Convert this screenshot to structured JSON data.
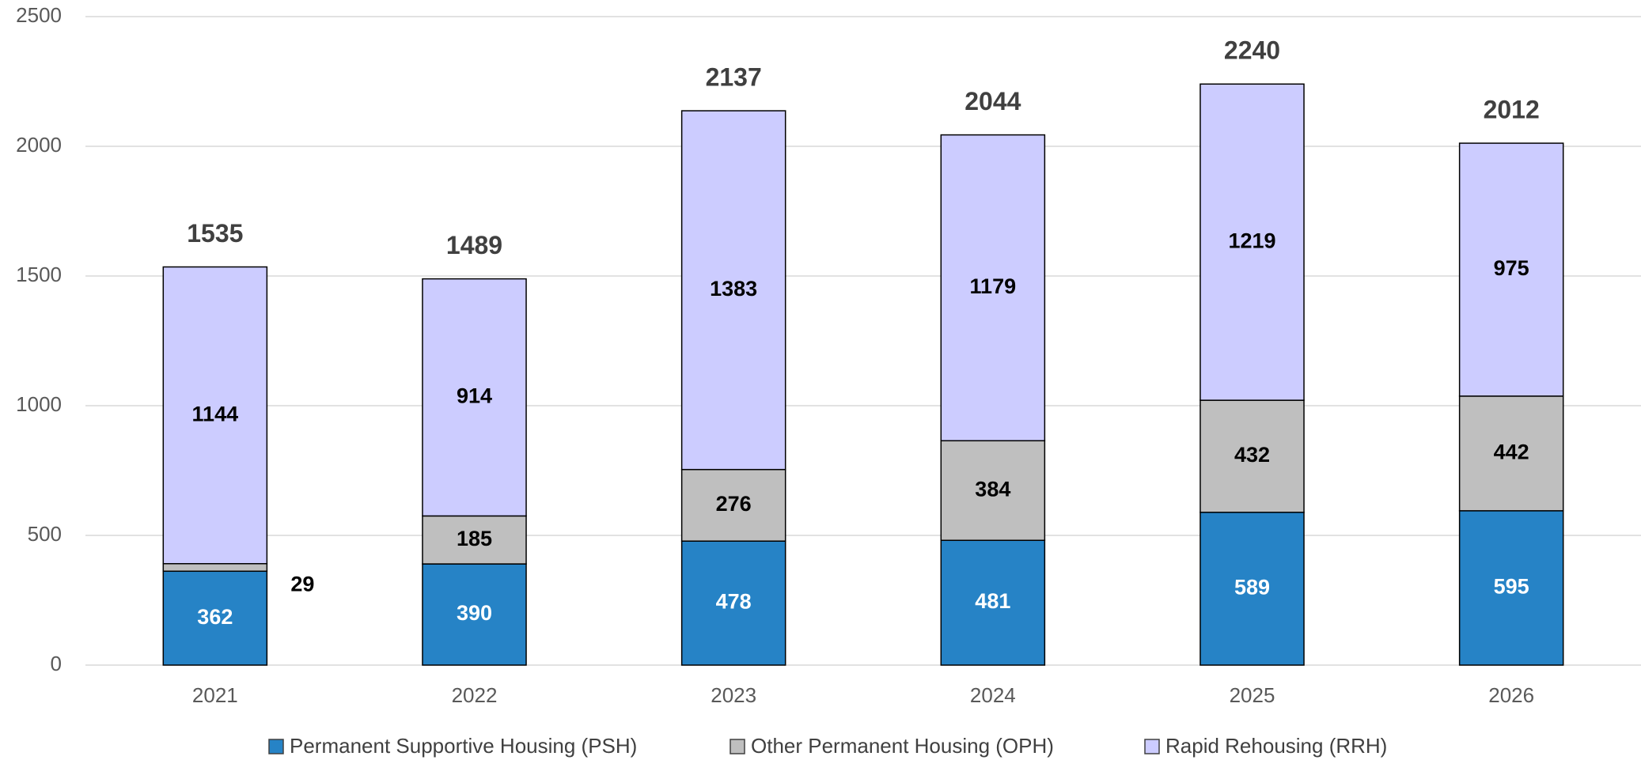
{
  "chart_data": {
    "type": "stacked_bar",
    "categories": [
      "2021",
      "2022",
      "2023",
      "2024",
      "2025",
      "2026"
    ],
    "series": [
      {
        "name": "Permanent Supportive Housing (PSH)",
        "color": "#2683c6",
        "values": [
          362,
          390,
          478,
          481,
          589,
          595
        ]
      },
      {
        "name": "Other Permanent Housing (OPH)",
        "color": "#bfbfbf",
        "values": [
          29,
          185,
          276,
          384,
          432,
          442
        ]
      },
      {
        "name": "Rapid Rehousing (RRH)",
        "color": "#ccccff",
        "values": [
          1144,
          914,
          1383,
          1179,
          1219,
          975
        ]
      }
    ],
    "totals": [
      1535,
      1489,
      2137,
      2044,
      2240,
      2012
    ],
    "ylim": [
      0,
      2500
    ],
    "yticks": [
      0,
      500,
      1000,
      1500,
      2000,
      2500
    ],
    "grid": true,
    "legend": "bottom"
  }
}
